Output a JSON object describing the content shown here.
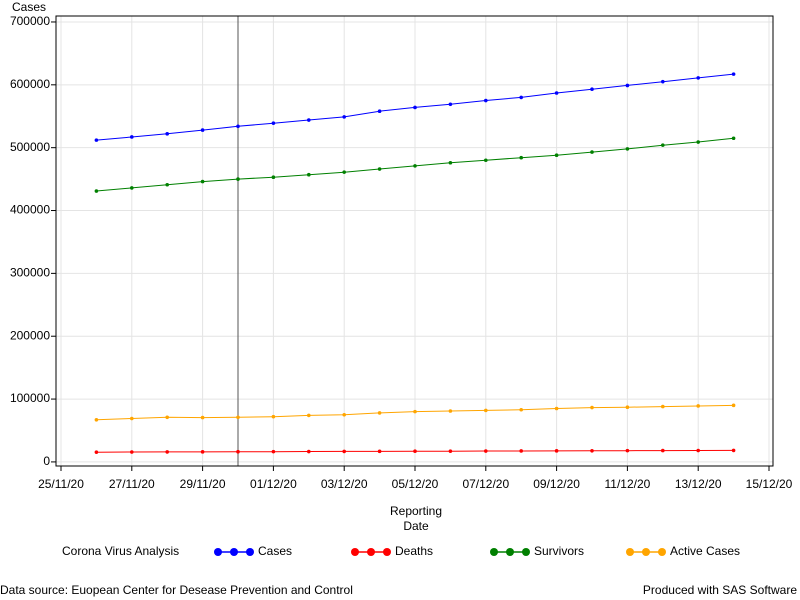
{
  "chart_data": {
    "type": "line",
    "y_label": "Cases",
    "x_label": [
      "Reporting",
      "Date"
    ],
    "legend_title": "Corona Virus Analysis",
    "footnote_left": "Data source: Euopean Center for Desease Prevention and Control",
    "footnote_right": "Produced with SAS Software",
    "x": [
      "2020-11-26",
      "2020-11-27",
      "2020-11-28",
      "2020-11-29",
      "2020-11-30",
      "2020-12-01",
      "2020-12-02",
      "2020-12-03",
      "2020-12-04",
      "2020-12-05",
      "2020-12-06",
      "2020-12-07",
      "2020-12-08",
      "2020-12-09",
      "2020-12-10",
      "2020-12-11",
      "2020-12-12",
      "2020-12-13",
      "2020-12-14"
    ],
    "series": [
      {
        "name": "Cases",
        "color": "#0000ff",
        "values": [
          512000,
          517000,
          522000,
          528000,
          534000,
          539000,
          544000,
          549000,
          558000,
          564000,
          569000,
          575000,
          580000,
          587000,
          593000,
          599000,
          605000,
          611000,
          617000
        ]
      },
      {
        "name": "Deaths",
        "color": "#ff0000",
        "values": [
          15500,
          15700,
          15900,
          16000,
          16200,
          16300,
          16500,
          16700,
          16800,
          17000,
          17100,
          17300,
          17400,
          17600,
          17700,
          17900,
          18000,
          18100,
          18300
        ]
      },
      {
        "name": "Survivors",
        "color": "#008000",
        "values": [
          431000,
          436000,
          441000,
          446000,
          450000,
          453000,
          457000,
          461000,
          466000,
          471000,
          476000,
          480000,
          484000,
          488000,
          493000,
          498000,
          504000,
          509000,
          515000
        ]
      },
      {
        "name": "Active Cases",
        "color": "#ffa500",
        "values": [
          67000,
          69000,
          71000,
          70500,
          71000,
          72000,
          74000,
          75000,
          78000,
          80000,
          81000,
          82000,
          83000,
          85000,
          86500,
          87000,
          88000,
          89000,
          90000
        ]
      }
    ],
    "xlim": [
      "2020-11-25",
      "2020-12-15"
    ],
    "xticks": [
      {
        "value": "2020-11-25",
        "label": "25/11/20"
      },
      {
        "value": "2020-11-27",
        "label": "27/11/20"
      },
      {
        "value": "2020-11-29",
        "label": "29/11/20"
      },
      {
        "value": "2020-12-01",
        "label": "01/12/20"
      },
      {
        "value": "2020-12-03",
        "label": "03/12/20"
      },
      {
        "value": "2020-12-05",
        "label": "05/12/20"
      },
      {
        "value": "2020-12-07",
        "label": "07/12/20"
      },
      {
        "value": "2020-12-09",
        "label": "09/12/20"
      },
      {
        "value": "2020-12-11",
        "label": "11/12/20"
      },
      {
        "value": "2020-12-13",
        "label": "13/12/20"
      },
      {
        "value": "2020-12-15",
        "label": "15/12/20"
      }
    ],
    "ylim": [
      -6500,
      709500
    ],
    "yticks": [
      0,
      100000,
      200000,
      300000,
      400000,
      500000,
      600000,
      700000
    ],
    "reference_line_x": "2020-11-30",
    "grid": true
  }
}
